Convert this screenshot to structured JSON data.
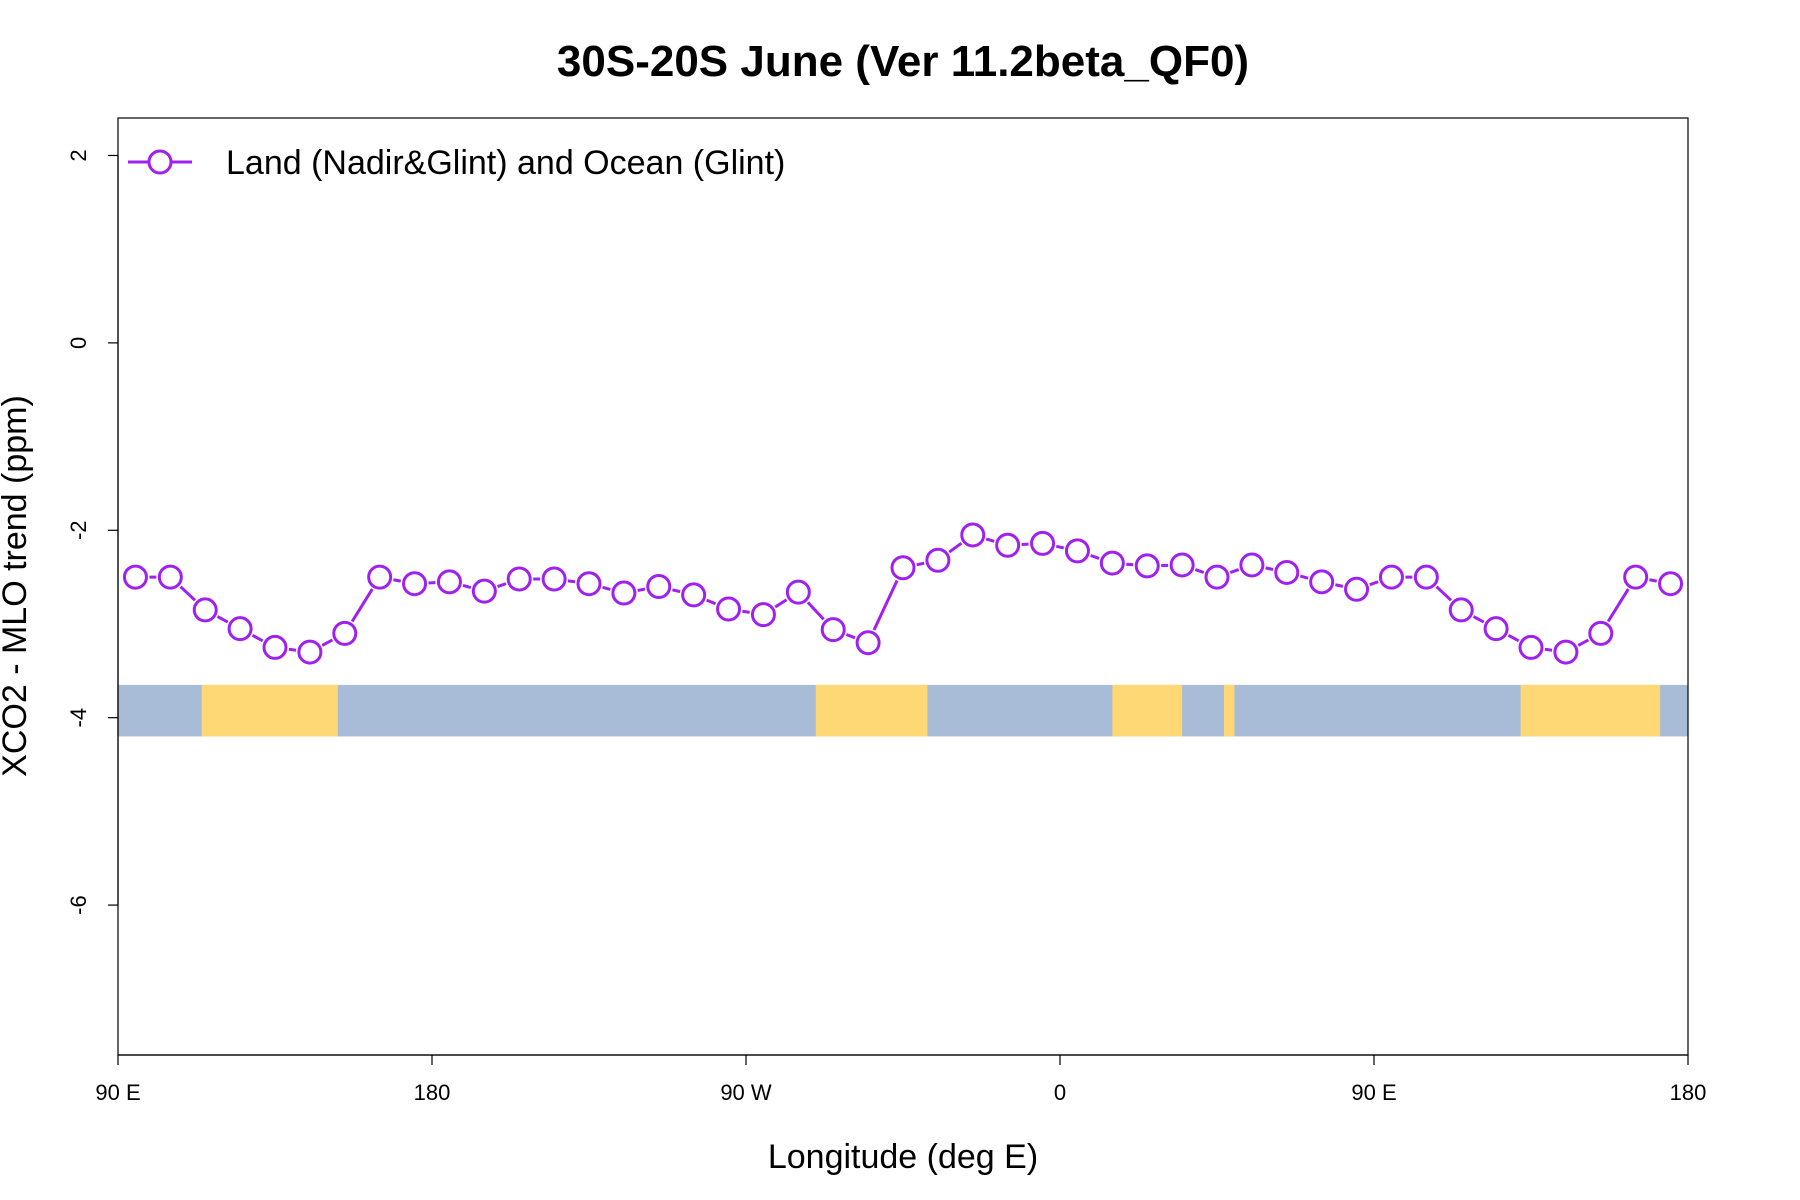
{
  "chart_data": {
    "type": "line",
    "title": "30S-20S June (Ver 11.2beta_QF0)",
    "xlabel": "Longitude (deg E)",
    "ylabel": "XCO2 - MLO trend (ppm)",
    "xlim": [
      90,
      540
    ],
    "ylim": [
      -7.6,
      2.4
    ],
    "x_ticks": [
      {
        "value": 90,
        "label": "90 E"
      },
      {
        "value": 180,
        "label": "180"
      },
      {
        "value": 270,
        "label": "90 W"
      },
      {
        "value": 360,
        "label": "0"
      },
      {
        "value": 450,
        "label": "90 E"
      },
      {
        "value": 540,
        "label": "180"
      }
    ],
    "y_ticks": [
      {
        "value": 2,
        "label": "2"
      },
      {
        "value": 0,
        "label": "0"
      },
      {
        "value": -2,
        "label": "-2"
      },
      {
        "value": -4,
        "label": "-4"
      },
      {
        "value": -6,
        "label": "-6"
      }
    ],
    "legend": {
      "position": "top-left",
      "entries": [
        "Land (Nadir&Glint) and Ocean (Glint)"
      ]
    },
    "series": [
      {
        "name": "Land (Nadir&Glint) and Ocean (Glint)",
        "color": "#a020f0",
        "marker": "open-circle",
        "x": [
          95,
          105,
          115,
          125,
          135,
          145,
          155,
          165,
          175,
          185,
          195,
          205,
          215,
          225,
          235,
          245,
          255,
          265,
          275,
          285,
          295,
          305,
          315,
          325,
          335,
          345,
          355,
          365,
          375,
          385,
          395,
          405,
          415,
          425,
          435,
          445,
          455,
          465,
          475,
          485,
          495,
          505,
          515,
          525,
          535
        ],
        "values": [
          -2.5,
          -2.5,
          -2.85,
          -3.05,
          -3.25,
          -3.3,
          -3.1,
          -2.5,
          -2.57,
          -2.55,
          -2.65,
          -2.52,
          -2.52,
          -2.57,
          -2.67,
          -2.6,
          -2.69,
          -2.84,
          -2.9,
          -2.66,
          -3.06,
          -3.2,
          -2.4,
          -2.32,
          -2.05,
          -2.16,
          -2.14,
          -2.22,
          -2.35,
          -2.38,
          -2.37,
          -2.5,
          -2.37,
          -2.45,
          -2.55,
          -2.63,
          -2.5,
          -2.5,
          -2.85,
          -3.05,
          -3.25,
          -3.3,
          -3.1,
          -2.5,
          -2.57
        ]
      }
    ],
    "map_strip": {
      "y_range": [
        -4.2,
        -3.65
      ],
      "ocean_color": "#a8bcd8",
      "land_color": "#fdd874",
      "land_segments": [
        [
          114,
          153
        ],
        [
          290,
          322
        ],
        [
          375,
          395
        ],
        [
          407,
          410
        ],
        [
          492,
          532
        ]
      ]
    }
  }
}
